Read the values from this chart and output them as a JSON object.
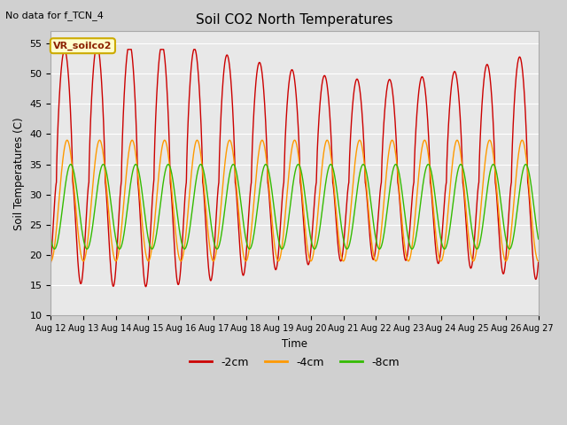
{
  "title": "Soil CO2 North Temperatures",
  "subtitle": "No data for f_TCN_4",
  "ylabel": "Soil Temperatures (C)",
  "xlabel": "Time",
  "legend_label": "VR_soilco2",
  "ylim": [
    10,
    57
  ],
  "x_tick_labels": [
    "Aug 12",
    "Aug 13",
    "Aug 14",
    "Aug 15",
    "Aug 16",
    "Aug 17",
    "Aug 18",
    "Aug 19",
    "Aug 20",
    "Aug 21",
    "Aug 22",
    "Aug 23",
    "Aug 24",
    "Aug 25",
    "Aug 26",
    "Aug 27"
  ],
  "series_colors": {
    "-2cm": "#cc0000",
    "-4cm": "#ff9900",
    "-8cm": "#33bb00"
  },
  "plot_bg_color": "#e8e8e8",
  "fig_bg_color": "#d0d0d0",
  "grid_color": "#ffffff",
  "yticks": [
    10,
    15,
    20,
    25,
    30,
    35,
    40,
    45,
    50,
    55
  ]
}
